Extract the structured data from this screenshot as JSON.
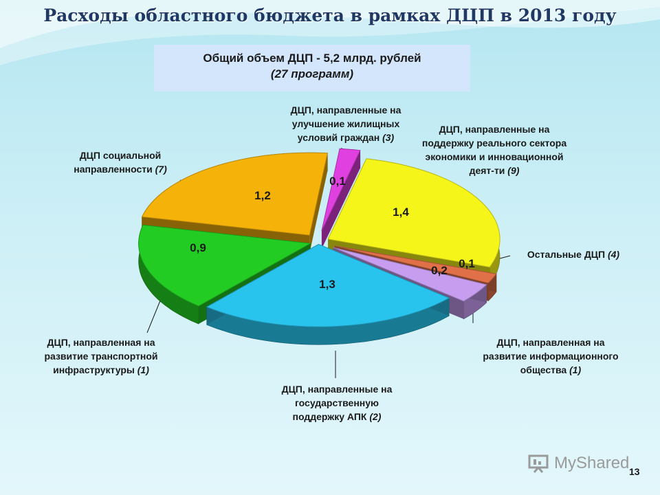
{
  "title": "Расходы областного бюджета в рамках ДЦП в 2013 году",
  "summary": {
    "line1": "Общий объем ДЦП - 5,2 млрд. рублей",
    "line2": "(27 программ)"
  },
  "chart_data": {
    "type": "pie",
    "title": "Расходы областного бюджета в рамках ДЦП в 2013 году",
    "units": "млрд. рублей",
    "three_d": true,
    "exploded": true,
    "slices": [
      {
        "label": "ДЦП, направленные на улучшение жилищных условий граждан",
        "count": "(3)",
        "value": 0.1,
        "value_label": "0,1",
        "color": "#e040e0"
      },
      {
        "label": "ДЦП, направленные на поддержку реального сектора экономики и инновационной деят-ти",
        "count": "(9)",
        "value": 1.4,
        "value_label": "1,4",
        "color": "#f5f51a"
      },
      {
        "label": "Остальные ДЦП",
        "count": "(4)",
        "value": 0.1,
        "value_label": "0,1",
        "color": "#e07048"
      },
      {
        "label": "ДЦП, направленная на развитие информационного общества",
        "count": "(1)",
        "value": 0.2,
        "value_label": "0,2",
        "color": "#c79df0"
      },
      {
        "label": "ДЦП, направленные на государственную поддержку АПК",
        "count": "(2)",
        "value": 1.3,
        "value_label": "1,3",
        "color": "#29c4ee"
      },
      {
        "label": "ДЦП, направленная на развитие транспортной инфраструктуры",
        "count": "(1)",
        "value": 0.9,
        "value_label": "0,9",
        "color": "#22cc22"
      },
      {
        "label": "ДЦП социальной направленности",
        "count": "(7)",
        "value": 1.2,
        "value_label": "1,2",
        "color": "#f5b30a"
      }
    ]
  },
  "watermark": "MyShared",
  "page_number": "13"
}
